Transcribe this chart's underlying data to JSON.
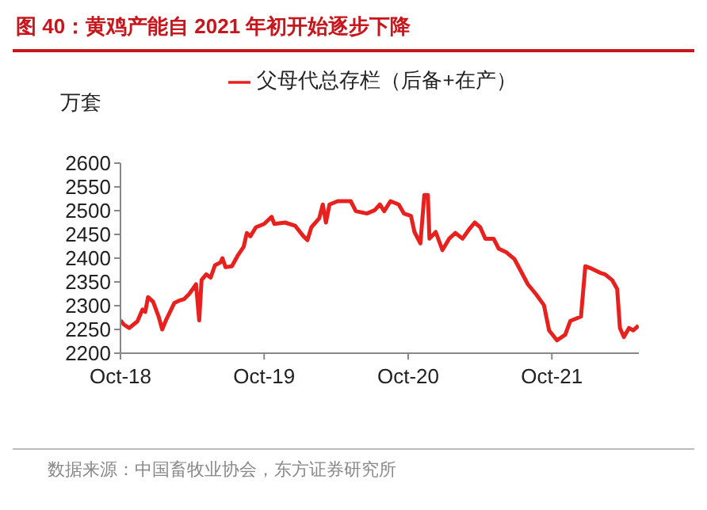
{
  "chart_data": {
    "type": "line",
    "title": "图 40：黄鸡产能自 2021 年初开始逐步下降",
    "ylabel": "万套",
    "annotations": [
      "数据来源：中国畜牧业协会，东方证券研究所"
    ],
    "x": [
      "2018-10-01",
      "2018-10-10",
      "2018-10-23",
      "2018-11-13",
      "2018-11-26",
      "2018-12-03",
      "2018-12-10",
      "2018-12-23",
      "2019-01-06",
      "2019-01-15",
      "2019-01-26",
      "2019-02-15",
      "2019-02-28",
      "2019-03-12",
      "2019-03-25",
      "2019-04-11",
      "2019-04-19",
      "2019-04-25",
      "2019-05-07",
      "2019-05-18",
      "2019-05-29",
      "2019-06-12",
      "2019-06-17",
      "2019-06-25",
      "2019-07-11",
      "2019-07-27",
      "2019-08-10",
      "2019-08-18",
      "2019-08-27",
      "2019-09-10",
      "2019-10-01",
      "2019-10-20",
      "2019-10-27",
      "2019-11-23",
      "2019-12-19",
      "2020-01-09",
      "2020-01-19",
      "2020-01-29",
      "2020-02-18",
      "2020-02-27",
      "2020-03-06",
      "2020-03-15",
      "2020-04-05",
      "2020-05-08",
      "2020-05-21",
      "2020-06-18",
      "2020-07-08",
      "2020-07-21",
      "2020-08-01",
      "2020-08-17",
      "2020-09-07",
      "2020-09-20",
      "2020-10-08",
      "2020-10-17",
      "2020-11-01",
      "2020-11-11",
      "2020-11-20",
      "2020-11-24",
      "2020-12-10",
      "2020-12-27",
      "2021-01-13",
      "2021-01-29",
      "2021-02-16",
      "2021-03-06",
      "2021-03-19",
      "2021-04-02",
      "2021-04-15",
      "2021-05-06",
      "2021-05-19",
      "2021-06-08",
      "2021-06-28",
      "2021-07-11",
      "2021-08-01",
      "2021-08-21",
      "2021-09-11",
      "2021-09-24",
      "2021-10-14",
      "2021-11-04",
      "2021-11-17",
      "2021-12-14",
      "2021-12-25",
      "2022-01-10",
      "2022-02-01",
      "2022-02-13",
      "2022-03-03",
      "2022-03-16",
      "2022-03-23",
      "2022-04-02",
      "2022-04-15",
      "2022-04-26",
      "2022-05-09"
    ],
    "series": [
      {
        "name": "父母代总存栏（后备+在产）",
        "color": "#e8201e",
        "values": [
          2269,
          2260,
          2253,
          2267,
          2292,
          2287,
          2318,
          2308,
          2277,
          2250,
          2272,
          2306,
          2311,
          2314,
          2325,
          2345,
          2269,
          2354,
          2366,
          2359,
          2385,
          2391,
          2400,
          2381,
          2383,
          2407,
          2424,
          2453,
          2446,
          2465,
          2472,
          2487,
          2472,
          2475,
          2468,
          2446,
          2438,
          2465,
          2484,
          2513,
          2475,
          2513,
          2520,
          2520,
          2499,
          2494,
          2501,
          2513,
          2499,
          2520,
          2513,
          2494,
          2489,
          2455,
          2431,
          2533,
          2533,
          2441,
          2455,
          2417,
          2441,
          2453,
          2441,
          2462,
          2475,
          2465,
          2441,
          2441,
          2420,
          2412,
          2398,
          2378,
          2345,
          2325,
          2301,
          2248,
          2227,
          2239,
          2268,
          2277,
          2383,
          2378,
          2369,
          2366,
          2354,
          2335,
          2253,
          2234,
          2253,
          2248,
          2258
        ]
      }
    ],
    "xlim": [
      "2018-10-01",
      "2022-05-10"
    ],
    "xticks": [
      {
        "value": "2018-10-01",
        "label": "Oct-18"
      },
      {
        "value": "2019-10-01",
        "label": "Oct-19"
      },
      {
        "value": "2020-10-01",
        "label": "Oct-20"
      },
      {
        "value": "2021-10-01",
        "label": "Oct-21"
      }
    ],
    "ylim": [
      2200,
      2600
    ],
    "yticks": [
      2200,
      2250,
      2300,
      2350,
      2400,
      2450,
      2500,
      2550,
      2600
    ],
    "grid": false,
    "legend": "top",
    "marker": "none",
    "line_style": "solid"
  }
}
